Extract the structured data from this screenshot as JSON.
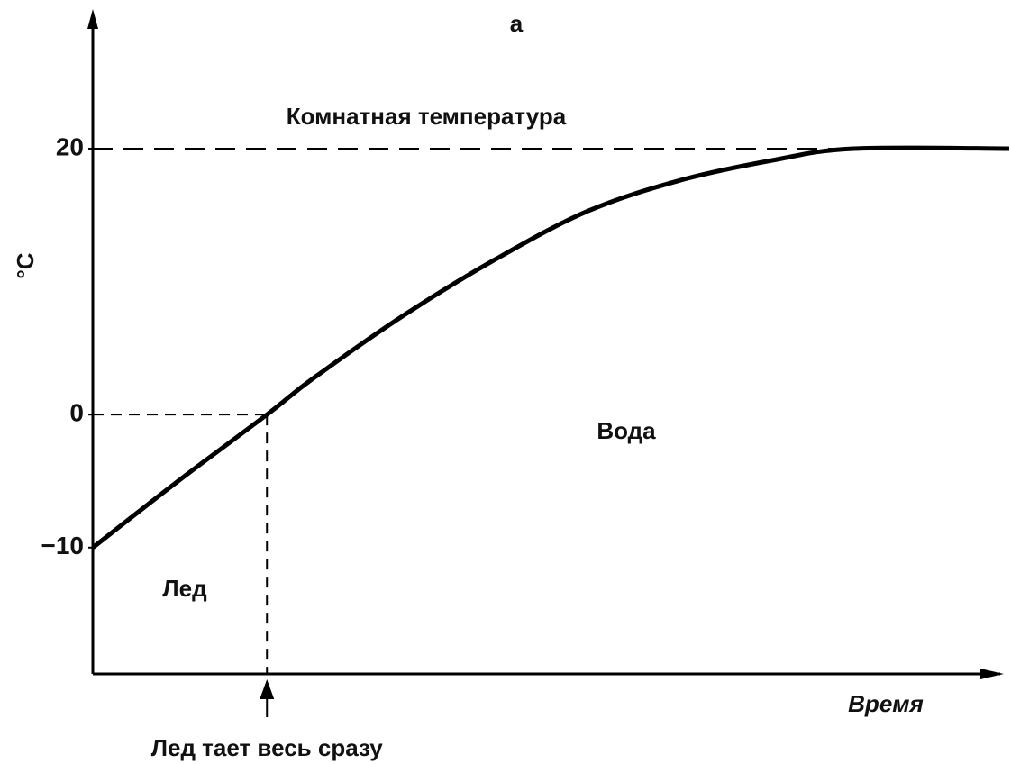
{
  "chart_data": {
    "type": "line",
    "title": "а",
    "ylabel": "°C",
    "xlabel": "Время",
    "x": [
      0,
      9.5,
      19,
      24,
      34,
      44,
      54,
      64,
      74,
      83,
      100
    ],
    "series": [
      {
        "color": "#000000",
        "values": [
          -10,
          -4.9,
          0,
          2.7,
          7.5,
          11.7,
          15.3,
          17.6,
          19.1,
          20,
          20
        ]
      }
    ],
    "xlim": [
      0,
      100
    ],
    "ylim": [
      -19.5,
      30.5
    ],
    "yticks": [
      {
        "value": -10,
        "label": "−10"
      },
      0,
      20
    ],
    "reference_label": "Комнатная температура",
    "melt": {
      "text": "Лед тает весь сразу",
      "x": 19
    },
    "regions": [
      "Лед",
      "Вода"
    ]
  }
}
